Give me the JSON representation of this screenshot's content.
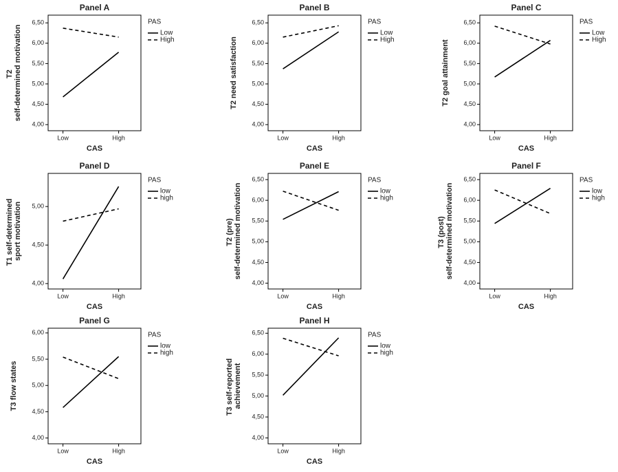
{
  "chart_data": [
    {
      "type": "line",
      "title": "Panel A",
      "x_label": "CAS",
      "y_label": "T2 self-determined motivation",
      "legend_title": "PAS",
      "categories": [
        "Low",
        "High"
      ],
      "ylim": [
        3.85,
        6.69
      ],
      "yticks": [
        {
          "value": 4,
          "label": "4,00"
        },
        {
          "value": 4.5,
          "label": "4,50"
        },
        {
          "value": 5,
          "label": "5,00"
        },
        {
          "value": 5.5,
          "label": "5,50"
        },
        {
          "value": 6,
          "label": "6,00"
        },
        {
          "value": 6.5,
          "label": "6,50"
        }
      ],
      "series": [
        {
          "name": "Low",
          "color": "#000000",
          "line_style": "solid",
          "values": [
            4.68,
            5.78
          ]
        },
        {
          "name": "High",
          "color": "#000000",
          "line_style": "dashed",
          "values": [
            6.37,
            6.15
          ]
        }
      ]
    },
    {
      "type": "line",
      "title": "Panel B",
      "x_label": "CAS",
      "y_label": "T2 need satisfaction",
      "legend_title": "PAS",
      "categories": [
        "Low",
        "High"
      ],
      "ylim": [
        3.85,
        6.69
      ],
      "yticks": [
        {
          "value": 4,
          "label": "4,00"
        },
        {
          "value": 4.5,
          "label": "4,50"
        },
        {
          "value": 5,
          "label": "5,00"
        },
        {
          "value": 5.5,
          "label": "5,50"
        },
        {
          "value": 6,
          "label": "6,00"
        },
        {
          "value": 6.5,
          "label": "6,50"
        }
      ],
      "series": [
        {
          "name": "Low",
          "color": "#000000",
          "line_style": "solid",
          "values": [
            5.37,
            6.28
          ]
        },
        {
          "name": "High",
          "color": "#000000",
          "line_style": "dashed",
          "values": [
            6.15,
            6.43
          ]
        }
      ]
    },
    {
      "type": "line",
      "title": "Panel C",
      "x_label": "CAS",
      "y_label": "T2 goal attainment",
      "legend_title": "PAS",
      "categories": [
        "Low",
        "High"
      ],
      "ylim": [
        3.85,
        6.69
      ],
      "yticks": [
        {
          "value": 4,
          "label": "4,00"
        },
        {
          "value": 4.5,
          "label": "4,50"
        },
        {
          "value": 5,
          "label": "5,00"
        },
        {
          "value": 5.5,
          "label": "5,50"
        },
        {
          "value": 6,
          "label": "6,00"
        },
        {
          "value": 6.5,
          "label": "6,50"
        }
      ],
      "series": [
        {
          "name": "Low",
          "color": "#000000",
          "line_style": "solid",
          "values": [
            5.17,
            6.07
          ]
        },
        {
          "name": "High",
          "color": "#000000",
          "line_style": "dashed",
          "values": [
            6.42,
            5.98
          ]
        }
      ]
    },
    {
      "type": "line",
      "title": "Panel D",
      "x_label": "CAS",
      "y_label": "T1 self-determined sport motivation",
      "legend_title": "PAS",
      "categories": [
        "Low",
        "High"
      ],
      "ylim": [
        3.93,
        5.43
      ],
      "yticks": [
        {
          "value": 4,
          "label": "4,00"
        },
        {
          "value": 4.5,
          "label": "4,50"
        },
        {
          "value": 5,
          "label": "5,00"
        }
      ],
      "series": [
        {
          "name": "low",
          "color": "#000000",
          "line_style": "solid",
          "values": [
            4.06,
            5.26
          ]
        },
        {
          "name": "high",
          "color": "#000000",
          "line_style": "dashed",
          "values": [
            4.81,
            4.97
          ]
        }
      ]
    },
    {
      "type": "line",
      "title": "Panel E",
      "x_label": "CAS",
      "y_label": "T2 (pre) self-determined motivation",
      "legend_title": "PAS",
      "categories": [
        "Low",
        "High"
      ],
      "ylim": [
        3.86,
        6.65
      ],
      "yticks": [
        {
          "value": 4,
          "label": "4,00"
        },
        {
          "value": 4.5,
          "label": "4,50"
        },
        {
          "value": 5,
          "label": "5,00"
        },
        {
          "value": 5.5,
          "label": "5,50"
        },
        {
          "value": 6,
          "label": "6,00"
        },
        {
          "value": 6.5,
          "label": "6,50"
        }
      ],
      "series": [
        {
          "name": "low",
          "color": "#000000",
          "line_style": "solid",
          "values": [
            5.54,
            6.21
          ]
        },
        {
          "name": "high",
          "color": "#000000",
          "line_style": "dashed",
          "values": [
            6.22,
            5.76
          ]
        }
      ]
    },
    {
      "type": "line",
      "title": "Panel F",
      "x_label": "CAS",
      "y_label": "T3 (post) self-determined motivation",
      "legend_title": "PAS",
      "categories": [
        "Low",
        "High"
      ],
      "ylim": [
        3.86,
        6.65
      ],
      "yticks": [
        {
          "value": 4,
          "label": "4,00"
        },
        {
          "value": 4.5,
          "label": "4,50"
        },
        {
          "value": 5,
          "label": "5,00"
        },
        {
          "value": 5.5,
          "label": "5,50"
        },
        {
          "value": 6,
          "label": "6,00"
        },
        {
          "value": 6.5,
          "label": "6,50"
        }
      ],
      "series": [
        {
          "name": "low",
          "color": "#000000",
          "line_style": "solid",
          "values": [
            5.44,
            6.29
          ]
        },
        {
          "name": "high",
          "color": "#000000",
          "line_style": "dashed",
          "values": [
            6.25,
            5.68
          ]
        }
      ]
    },
    {
      "type": "line",
      "title": "Panel G",
      "x_label": "CAS",
      "y_label": "T3 flow states",
      "legend_title": "PAS",
      "categories": [
        "Low",
        "High"
      ],
      "ylim": [
        3.89,
        6.09
      ],
      "yticks": [
        {
          "value": 4,
          "label": "4,00"
        },
        {
          "value": 4.5,
          "label": "4,50"
        },
        {
          "value": 5,
          "label": "5,00"
        },
        {
          "value": 5.5,
          "label": "5,50"
        },
        {
          "value": 6,
          "label": "6,00"
        }
      ],
      "series": [
        {
          "name": "low",
          "color": "#000000",
          "line_style": "solid",
          "values": [
            4.58,
            5.55
          ]
        },
        {
          "name": "high",
          "color": "#000000",
          "line_style": "dashed",
          "values": [
            5.54,
            5.13
          ]
        }
      ]
    },
    {
      "type": "line",
      "title": "Panel H",
      "x_label": "CAS",
      "y_label": "T3 self-reported achievement",
      "legend_title": "PAS",
      "categories": [
        "Low",
        "High"
      ],
      "ylim": [
        3.86,
        6.62
      ],
      "yticks": [
        {
          "value": 4,
          "label": "4,00"
        },
        {
          "value": 4.5,
          "label": "4,50"
        },
        {
          "value": 5,
          "label": "5,00"
        },
        {
          "value": 5.5,
          "label": "5,50"
        },
        {
          "value": 6,
          "label": "6,00"
        },
        {
          "value": 6.5,
          "label": "6,50"
        }
      ],
      "series": [
        {
          "name": "low",
          "color": "#000000",
          "line_style": "solid",
          "values": [
            5.02,
            6.39
          ]
        },
        {
          "name": "high",
          "color": "#000000",
          "line_style": "dashed",
          "values": [
            6.38,
            5.96
          ]
        }
      ]
    }
  ]
}
